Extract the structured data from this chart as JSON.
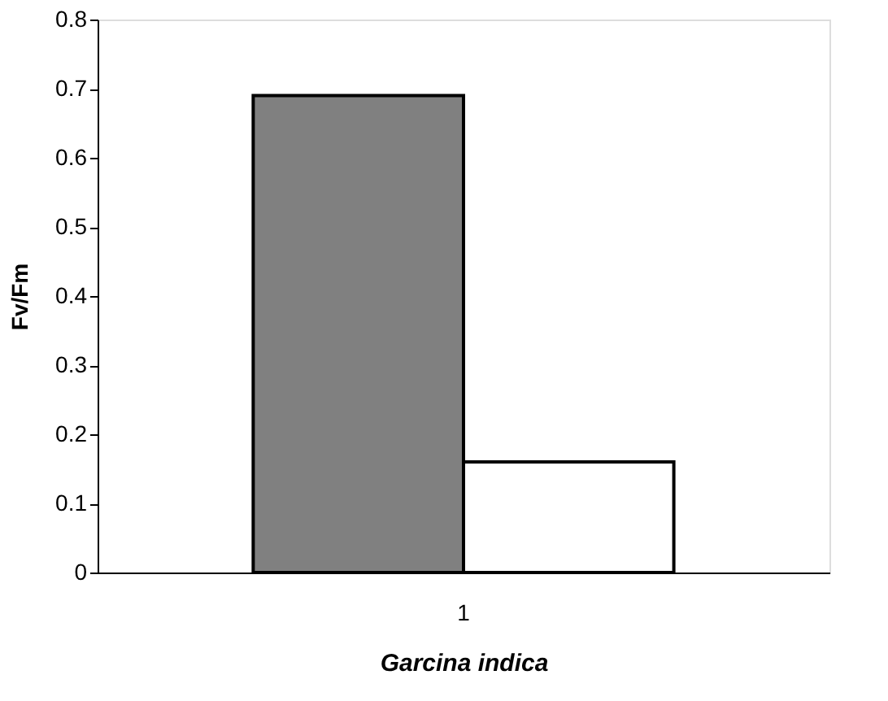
{
  "chart_data": {
    "type": "bar",
    "xlabel": "Garcina indica",
    "ylabel": "Fv/Fm",
    "categories": [
      "1"
    ],
    "series": [
      {
        "color": "#808080",
        "values": [
          0.69
        ]
      },
      {
        "color": "#ffffff",
        "values": [
          0.16
        ]
      }
    ],
    "ylim": [
      0,
      0.8
    ],
    "yticks": [
      0,
      0.1,
      0.2,
      0.3,
      0.4,
      0.5,
      0.6,
      0.7,
      0.8
    ],
    "grid": false,
    "legend": false
  }
}
